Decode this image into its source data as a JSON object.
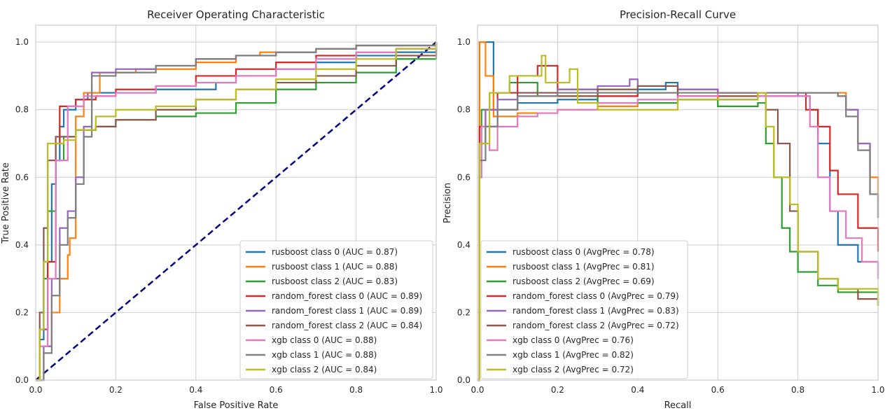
{
  "chart_data": [
    {
      "type": "line",
      "title": "Receiver Operating Characteristic",
      "xlabel": "False Positive Rate",
      "ylabel": "True Positive Rate",
      "xlim": [
        0,
        1
      ],
      "ylim": [
        0,
        1.05
      ],
      "xticks": [
        "0.0",
        "0.2",
        "0.4",
        "0.6",
        "0.8",
        "1.0"
      ],
      "yticks": [
        "0.0",
        "0.2",
        "0.4",
        "0.6",
        "0.8",
        "1.0"
      ],
      "grid": true,
      "legend_position": "lower-right",
      "baseline": {
        "x": [
          0,
          1
        ],
        "y": [
          0,
          1
        ],
        "color": "#000080",
        "style": "dashed"
      },
      "series": [
        {
          "name": "rusboost class 0 (AUC = 0.87)",
          "color": "#1f77b4",
          "x": [
            0,
            0.01,
            0.02,
            0.04,
            0.05,
            0.06,
            0.07,
            0.1,
            0.13,
            0.16,
            0.3,
            0.4,
            0.45,
            0.5,
            0.6,
            0.7,
            0.8,
            0.9,
            1.0
          ],
          "y": [
            0,
            0.12,
            0.35,
            0.58,
            0.65,
            0.75,
            0.8,
            0.83,
            0.85,
            0.85,
            0.86,
            0.86,
            0.88,
            0.9,
            0.92,
            0.94,
            0.96,
            0.97,
            1.0
          ]
        },
        {
          "name": "rusboost class 1 (AUC = 0.88)",
          "color": "#ff7f0e",
          "x": [
            0,
            0.02,
            0.04,
            0.06,
            0.08,
            0.085,
            0.1,
            0.12,
            0.16,
            0.25,
            0.4,
            0.5,
            0.56,
            0.6,
            0.7,
            0.8,
            0.9,
            1.0
          ],
          "y": [
            0,
            0.1,
            0.2,
            0.3,
            0.37,
            0.42,
            0.78,
            0.85,
            0.91,
            0.92,
            0.94,
            0.96,
            0.97,
            0.97,
            0.98,
            0.99,
            0.99,
            1.0
          ]
        },
        {
          "name": "rusboost class 2 (AUC = 0.83)",
          "color": "#2ca02c",
          "x": [
            0,
            0.01,
            0.02,
            0.03,
            0.05,
            0.07,
            0.1,
            0.15,
            0.2,
            0.3,
            0.4,
            0.5,
            0.6,
            0.7,
            0.8,
            0.9,
            1.0
          ],
          "y": [
            0,
            0.15,
            0.3,
            0.5,
            0.65,
            0.72,
            0.74,
            0.75,
            0.77,
            0.78,
            0.79,
            0.82,
            0.86,
            0.88,
            0.91,
            0.95,
            1.0
          ]
        },
        {
          "name": "random_forest class 0 (AUC = 0.89)",
          "color": "#d62728",
          "x": [
            0,
            0.01,
            0.03,
            0.05,
            0.06,
            0.1,
            0.15,
            0.2,
            0.3,
            0.4,
            0.5,
            0.6,
            0.7,
            0.8,
            0.9,
            1.0
          ],
          "y": [
            0,
            0.15,
            0.35,
            0.7,
            0.81,
            0.83,
            0.84,
            0.86,
            0.87,
            0.9,
            0.92,
            0.94,
            0.96,
            0.97,
            0.98,
            1.0
          ]
        },
        {
          "name": "random_forest class 1 (AUC = 0.89)",
          "color": "#9467bd",
          "x": [
            0,
            0.02,
            0.04,
            0.06,
            0.08,
            0.1,
            0.12,
            0.14,
            0.2,
            0.3,
            0.4,
            0.5,
            0.6,
            0.7,
            0.8,
            0.9,
            1.0
          ],
          "y": [
            0,
            0.1,
            0.3,
            0.45,
            0.5,
            0.6,
            0.75,
            0.91,
            0.92,
            0.93,
            0.95,
            0.96,
            0.97,
            0.98,
            0.99,
            0.99,
            1.0
          ]
        },
        {
          "name": "random_forest class 2 (AUC = 0.84)",
          "color": "#8c564b",
          "x": [
            0,
            0.01,
            0.02,
            0.03,
            0.05,
            0.1,
            0.15,
            0.2,
            0.3,
            0.4,
            0.5,
            0.6,
            0.7,
            0.8,
            0.9,
            1.0
          ],
          "y": [
            0,
            0.2,
            0.45,
            0.65,
            0.72,
            0.74,
            0.75,
            0.77,
            0.8,
            0.83,
            0.86,
            0.88,
            0.9,
            0.93,
            0.96,
            1.0
          ]
        },
        {
          "name": "xgb class 0 (AUC = 0.88)",
          "color": "#e377c2",
          "x": [
            0,
            0.01,
            0.03,
            0.05,
            0.08,
            0.12,
            0.2,
            0.3,
            0.4,
            0.5,
            0.6,
            0.7,
            0.8,
            0.9,
            1.0
          ],
          "y": [
            0,
            0.1,
            0.3,
            0.65,
            0.81,
            0.84,
            0.85,
            0.87,
            0.88,
            0.9,
            0.92,
            0.95,
            0.97,
            0.98,
            1.0
          ]
        },
        {
          "name": "xgb class 1 (AUC = 0.88)",
          "color": "#7f7f7f",
          "x": [
            0,
            0.02,
            0.04,
            0.06,
            0.08,
            0.1,
            0.12,
            0.14,
            0.2,
            0.3,
            0.4,
            0.5,
            0.6,
            0.7,
            0.8,
            0.9,
            1.0
          ],
          "y": [
            0,
            0.08,
            0.25,
            0.4,
            0.48,
            0.58,
            0.72,
            0.9,
            0.91,
            0.93,
            0.95,
            0.96,
            0.97,
            0.98,
            0.99,
            0.99,
            1.0
          ]
        },
        {
          "name": "xgb class 2 (AUC = 0.84)",
          "color": "#bcbd22",
          "x": [
            0,
            0.01,
            0.02,
            0.03,
            0.07,
            0.1,
            0.15,
            0.2,
            0.3,
            0.4,
            0.5,
            0.6,
            0.7,
            0.8,
            0.9,
            1.0
          ],
          "y": [
            0,
            0.15,
            0.35,
            0.7,
            0.71,
            0.74,
            0.78,
            0.8,
            0.81,
            0.83,
            0.86,
            0.89,
            0.92,
            0.95,
            0.98,
            1.0
          ]
        }
      ]
    },
    {
      "type": "line",
      "title": "Precision-Recall Curve",
      "xlabel": "Recall",
      "ylabel": "Precision",
      "xlim": [
        0,
        1
      ],
      "ylim": [
        0,
        1.05
      ],
      "xticks": [
        "0.0",
        "0.2",
        "0.4",
        "0.6",
        "0.8",
        "1.0"
      ],
      "yticks": [
        "0.0",
        "0.2",
        "0.4",
        "0.6",
        "0.8",
        "1.0"
      ],
      "grid": true,
      "legend_position": "lower-left",
      "series": [
        {
          "name": "rusboost class 0 (AvgPrec = 0.78)",
          "color": "#1f77b4",
          "x": [
            0,
            0.005,
            0.03,
            0.04,
            0.1,
            0.2,
            0.3,
            0.4,
            0.47,
            0.5,
            0.6,
            0.7,
            0.8,
            0.83,
            0.85,
            0.88,
            0.9,
            0.95,
            1.0
          ],
          "y": [
            0,
            1.0,
            1.0,
            0.8,
            0.82,
            0.83,
            0.84,
            0.86,
            0.88,
            0.84,
            0.83,
            0.84,
            0.84,
            0.8,
            0.7,
            0.5,
            0.4,
            0.35,
            0.3
          ]
        },
        {
          "name": "rusboost class 1 (AvgPrec = 0.81)",
          "color": "#ff7f0e",
          "x": [
            0,
            0.005,
            0.02,
            0.04,
            0.1,
            0.2,
            0.3,
            0.4,
            0.5,
            0.6,
            0.7,
            0.8,
            0.9,
            0.92,
            0.95,
            0.98,
            1.0
          ],
          "y": [
            0,
            1.0,
            0.9,
            0.78,
            0.79,
            0.8,
            0.81,
            0.82,
            0.83,
            0.84,
            0.84,
            0.85,
            0.85,
            0.8,
            0.7,
            0.6,
            0.48
          ]
        },
        {
          "name": "rusboost class 2 (AvgPrec = 0.69)",
          "color": "#2ca02c",
          "x": [
            0,
            0.005,
            0.01,
            0.03,
            0.08,
            0.15,
            0.3,
            0.5,
            0.6,
            0.7,
            0.72,
            0.74,
            0.76,
            0.78,
            0.8,
            0.85,
            0.9,
            1.0
          ],
          "y": [
            0,
            0.6,
            0.8,
            0.85,
            0.88,
            0.84,
            0.82,
            0.83,
            0.81,
            0.82,
            0.7,
            0.6,
            0.45,
            0.38,
            0.32,
            0.28,
            0.26,
            0.22
          ]
        },
        {
          "name": "random_forest class 0 (AvgPrec = 0.79)",
          "color": "#d62728",
          "x": [
            0,
            0.005,
            0.02,
            0.05,
            0.1,
            0.15,
            0.2,
            0.3,
            0.4,
            0.5,
            0.6,
            0.7,
            0.8,
            0.82,
            0.85,
            0.88,
            0.9,
            0.95,
            1.0
          ],
          "y": [
            0,
            0.75,
            0.8,
            0.85,
            0.9,
            0.93,
            0.86,
            0.84,
            0.85,
            0.86,
            0.85,
            0.85,
            0.85,
            0.8,
            0.75,
            0.62,
            0.55,
            0.45,
            0.38
          ]
        },
        {
          "name": "random_forest class 1 (AvgPrec = 0.83)",
          "color": "#9467bd",
          "x": [
            0,
            0.005,
            0.02,
            0.05,
            0.1,
            0.2,
            0.3,
            0.38,
            0.4,
            0.5,
            0.6,
            0.7,
            0.8,
            0.9,
            0.92,
            0.95,
            0.98,
            1.0
          ],
          "y": [
            0,
            0.7,
            0.8,
            0.83,
            0.84,
            0.86,
            0.87,
            0.89,
            0.87,
            0.86,
            0.85,
            0.84,
            0.85,
            0.84,
            0.8,
            0.7,
            0.55,
            0.48
          ]
        },
        {
          "name": "random_forest class 2 (AvgPrec = 0.72)",
          "color": "#8c564b",
          "x": [
            0,
            0.005,
            0.02,
            0.05,
            0.1,
            0.2,
            0.3,
            0.4,
            0.5,
            0.6,
            0.7,
            0.72,
            0.75,
            0.78,
            0.8,
            0.85,
            0.9,
            0.95,
            1.0
          ],
          "y": [
            0,
            0.7,
            0.75,
            0.8,
            0.85,
            0.84,
            0.86,
            0.87,
            0.84,
            0.84,
            0.85,
            0.8,
            0.7,
            0.5,
            0.38,
            0.3,
            0.27,
            0.24,
            0.22
          ]
        },
        {
          "name": "xgb class 0 (AvgPrec = 0.76)",
          "color": "#e377c2",
          "x": [
            0,
            0.005,
            0.01,
            0.03,
            0.05,
            0.1,
            0.15,
            0.2,
            0.3,
            0.4,
            0.5,
            0.6,
            0.7,
            0.8,
            0.83,
            0.85,
            0.88,
            0.92,
            0.96,
            1.0
          ],
          "y": [
            0,
            0.6,
            0.75,
            0.68,
            0.75,
            0.78,
            0.79,
            0.8,
            0.82,
            0.83,
            0.84,
            0.85,
            0.84,
            0.84,
            0.75,
            0.6,
            0.5,
            0.42,
            0.35,
            0.3
          ]
        },
        {
          "name": "xgb class 1 (AvgPrec = 0.82)",
          "color": "#7f7f7f",
          "x": [
            0,
            0.005,
            0.02,
            0.05,
            0.1,
            0.2,
            0.3,
            0.4,
            0.5,
            0.6,
            0.7,
            0.8,
            0.9,
            0.92,
            0.95,
            0.98,
            1.0
          ],
          "y": [
            0,
            0.65,
            0.75,
            0.8,
            0.84,
            0.85,
            0.85,
            0.85,
            0.85,
            0.85,
            0.85,
            0.85,
            0.84,
            0.78,
            0.68,
            0.55,
            0.48
          ]
        },
        {
          "name": "xgb class 2 (AvgPrec = 0.72)",
          "color": "#bcbd22",
          "x": [
            0,
            0.005,
            0.03,
            0.08,
            0.16,
            0.17,
            0.23,
            0.25,
            0.3,
            0.5,
            0.7,
            0.72,
            0.74,
            0.78,
            0.8,
            0.85,
            0.9,
            1.0
          ],
          "y": [
            0,
            0.7,
            0.85,
            0.9,
            0.96,
            0.88,
            0.92,
            0.82,
            0.8,
            0.83,
            0.85,
            0.75,
            0.6,
            0.52,
            0.38,
            0.3,
            0.27,
            0.22
          ]
        }
      ]
    }
  ]
}
